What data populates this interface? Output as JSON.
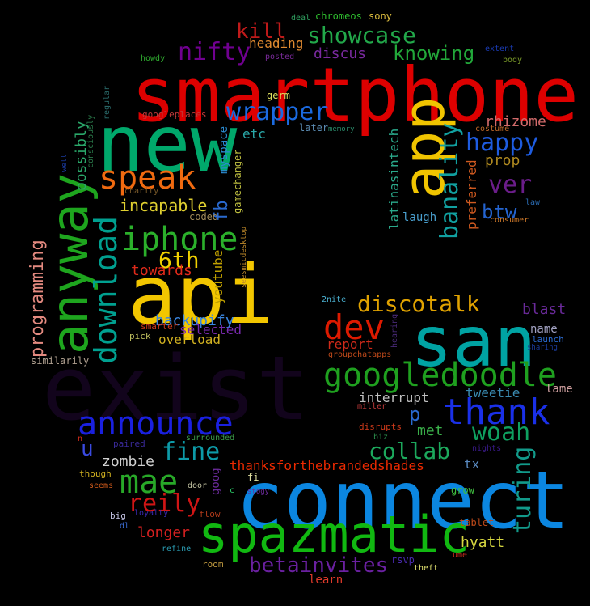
{
  "words": [
    {
      "text": "smartphone",
      "color": "#dd0000"
    },
    {
      "text": "connect",
      "color": "#0b86e0"
    },
    {
      "text": "exist",
      "color": "#12041c"
    },
    {
      "text": "api",
      "color": "#f2c600"
    },
    {
      "text": "san",
      "color": "#00a3a3"
    },
    {
      "text": "new",
      "color": "#00a86b"
    },
    {
      "text": "spazmatic",
      "color": "#11b811"
    },
    {
      "text": "anyway",
      "color": "#1ea51e"
    },
    {
      "text": "app",
      "color": "#f0c400"
    },
    {
      "text": "googledoodle",
      "color": "#1fa01f"
    },
    {
      "text": "announce",
      "color": "#1a20e0"
    },
    {
      "text": "thank",
      "color": "#1a30e8"
    },
    {
      "text": "download",
      "color": "#00a090"
    },
    {
      "text": "iphone",
      "color": "#2bb02b"
    },
    {
      "text": "speak",
      "color": "#f06a10"
    },
    {
      "text": "dev",
      "color": "#dd1a00"
    },
    {
      "text": "discotalk",
      "color": "#e0a200"
    },
    {
      "text": "mae",
      "color": "#28a828"
    },
    {
      "text": "showcase",
      "color": "#22a84a"
    },
    {
      "text": "wrapper",
      "color": "#1b6ae0"
    },
    {
      "text": "happy",
      "color": "#1e5ce0"
    },
    {
      "text": "nifty",
      "color": "#700090"
    },
    {
      "text": "kill",
      "color": "#c01a1a"
    },
    {
      "text": "knowing",
      "color": "#22a83a"
    },
    {
      "text": "banality",
      "color": "#11a0a0"
    },
    {
      "text": "6th",
      "color": "#f0d000"
    },
    {
      "text": "fine",
      "color": "#0d9aa8"
    },
    {
      "text": "collab",
      "color": "#1ca85c"
    },
    {
      "text": "woah",
      "color": "#0fa060"
    },
    {
      "text": "turing",
      "color": "#129a8a"
    },
    {
      "text": "betainvites",
      "color": "#6a20a0"
    },
    {
      "text": "reily",
      "color": "#d01515"
    },
    {
      "text": "ver",
      "color": "#6b1d8a"
    },
    {
      "text": "programming",
      "color": "#e48a80"
    },
    {
      "text": "incapable",
      "color": "#e0d030"
    },
    {
      "text": "btw",
      "color": "#2464d0"
    },
    {
      "text": "zombie",
      "color": "#d0d0d0"
    },
    {
      "text": "thanksforthebrandedshades",
      "color": "#ee2a00"
    },
    {
      "text": "longer",
      "color": "#d42020"
    },
    {
      "text": "hyatt",
      "color": "#d8d840"
    },
    {
      "text": "backupify",
      "color": "#3a86e0"
    },
    {
      "text": "blast",
      "color": "#6a2a9a"
    },
    {
      "text": "rhizome",
      "color": "#d06a6a"
    },
    {
      "text": "fb",
      "color": "#2a6ad0"
    },
    {
      "text": "myspace",
      "color": "#2a8ad0"
    },
    {
      "text": "p",
      "color": "#2a6ad0"
    },
    {
      "text": "u",
      "color": "#3a4ae0"
    },
    {
      "text": "possibly",
      "color": "#2aa86a"
    },
    {
      "text": "prop",
      "color": "#b08a20"
    },
    {
      "text": "latinasintech",
      "color": "#2aa88a"
    },
    {
      "text": "preferred",
      "color": "#d05a20"
    },
    {
      "text": "report",
      "color": "#d02a1a"
    },
    {
      "text": "interrupt",
      "color": "#c0c0c0"
    },
    {
      "text": "met",
      "color": "#3ab04a"
    },
    {
      "text": "tweetie",
      "color": "#3a8ab0"
    },
    {
      "text": "towards",
      "color": "#e02a1a"
    },
    {
      "text": "youtube",
      "color": "#c0a000"
    },
    {
      "text": "heading",
      "color": "#e08a30"
    },
    {
      "text": "discus",
      "color": "#7a2aa0"
    },
    {
      "text": "laugh",
      "color": "#4aa0d0"
    },
    {
      "text": "etc",
      "color": "#2aa8a8"
    },
    {
      "text": "gamechanger",
      "color": "#c0c040"
    },
    {
      "text": "selected",
      "color": "#7a2ab0"
    },
    {
      "text": "overload",
      "color": "#d0b020"
    },
    {
      "text": "similarily",
      "color": "#b0a090"
    },
    {
      "text": "goog",
      "color": "#6a2a9a"
    },
    {
      "text": "tx",
      "color": "#5a8ac0"
    },
    {
      "text": "lame",
      "color": "#d0a0a0"
    },
    {
      "text": "name",
      "color": "#a0a0c0"
    },
    {
      "text": "coded",
      "color": "#a08a5a"
    },
    {
      "text": "chromeos",
      "color": "#30c030"
    },
    {
      "text": "sony",
      "color": "#e0c040"
    },
    {
      "text": "deal",
      "color": "#30a060"
    },
    {
      "text": "howdy",
      "color": "#30b030"
    },
    {
      "text": "posted",
      "color": "#7a2a9a"
    },
    {
      "text": "germ",
      "color": "#e0e060"
    },
    {
      "text": "regular",
      "color": "#2a6a6a"
    },
    {
      "text": "googleplaces",
      "color": "#c03a3a"
    },
    {
      "text": "later",
      "color": "#5a8ab0"
    },
    {
      "text": "memory",
      "color": "#2a8a6a"
    },
    {
      "text": "costume",
      "color": "#c06a2a"
    },
    {
      "text": "law",
      "color": "#2a6ab0"
    },
    {
      "text": "consumer",
      "color": "#d07a2a"
    },
    {
      "text": "body",
      "color": "#7a9a2a"
    },
    {
      "text": "extent",
      "color": "#1a3ab0"
    },
    {
      "text": "consciously",
      "color": "#2a7a4a"
    },
    {
      "text": "well",
      "color": "#1a3aa0"
    },
    {
      "text": "charity",
      "color": "#7a5a2a"
    },
    {
      "text": "seesmicdesktop",
      "color": "#c08a2a"
    },
    {
      "text": "smarter",
      "color": "#d03a1a"
    },
    {
      "text": "pick",
      "color": "#c0c060"
    },
    {
      "text": "2nite",
      "color": "#4ab0d0"
    },
    {
      "text": "hearing",
      "color": "#4a2a7a"
    },
    {
      "text": "groupchatapps",
      "color": "#c04a1a"
    },
    {
      "text": "miller",
      "color": "#c03a3a"
    },
    {
      "text": "launch",
      "color": "#2a6ad0"
    },
    {
      "text": "sharing",
      "color": "#1a3a9a"
    },
    {
      "text": "disrupts",
      "color": "#d03a1a"
    },
    {
      "text": "biz",
      "color": "#2a8a4a"
    },
    {
      "text": "surrounded",
      "color": "#3a9a4a"
    },
    {
      "text": "paired",
      "color": "#3a2a9a"
    },
    {
      "text": "n",
      "color": "#d02a1a"
    },
    {
      "text": "though",
      "color": "#d0b020"
    },
    {
      "text": "seems",
      "color": "#d05a1a"
    },
    {
      "text": "door",
      "color": "#c0c0a0"
    },
    {
      "text": "fi",
      "color": "#e0e0a0"
    },
    {
      "text": "c",
      "color": "#2ad06a"
    },
    {
      "text": "stogy",
      "color": "#6a2a9a"
    },
    {
      "text": "nights",
      "color": "#3a1a8a"
    },
    {
      "text": "grow",
      "color": "#40c040"
    },
    {
      "text": "big",
      "color": "#c0c0e0"
    },
    {
      "text": "loyalty",
      "color": "#3a2ab0"
    },
    {
      "text": "flow",
      "color": "#b03a1a"
    },
    {
      "text": "dl",
      "color": "#3a6ad0"
    },
    {
      "text": "tablet",
      "color": "#c04a1a"
    },
    {
      "text": "refine",
      "color": "#2a9ab0"
    },
    {
      "text": "room",
      "color": "#c09a40"
    },
    {
      "text": "rsvp",
      "color": "#4a2ab0"
    },
    {
      "text": "ume",
      "color": "#c02a1a"
    },
    {
      "text": "theft",
      "color": "#e0e070"
    },
    {
      "text": "learn",
      "color": "#e03a2a"
    }
  ]
}
